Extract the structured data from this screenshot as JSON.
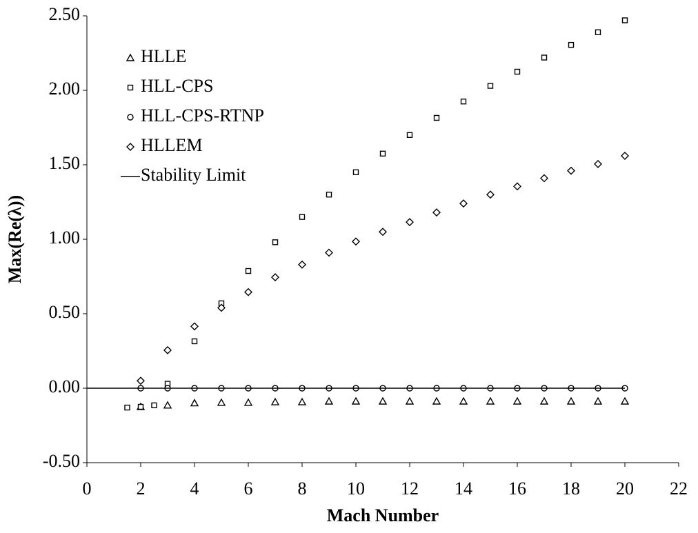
{
  "chart_data": {
    "type": "scatter",
    "x_label": "Mach Number",
    "y_label": "Max(Re(λ))",
    "xlim": [
      0,
      22
    ],
    "xticks": [
      0,
      2,
      4,
      6,
      8,
      10,
      12,
      14,
      16,
      18,
      20,
      22
    ],
    "ylim": [
      -0.5,
      2.5
    ],
    "yticks": [
      {
        "value": -0.5,
        "label": "-0.50"
      },
      {
        "value": 0,
        "label": "0.00"
      },
      {
        "value": 0.5,
        "label": "0.50"
      },
      {
        "value": 1,
        "label": "1.00"
      },
      {
        "value": 1.5,
        "label": "1.50"
      },
      {
        "value": 2,
        "label": "2.00"
      },
      {
        "value": 2.5,
        "label": "2.50"
      }
    ],
    "grid": false,
    "legend": "upper left",
    "series": [
      {
        "name": "HLLE",
        "marker": "triangle",
        "color": "#000000",
        "x": [
          2,
          3,
          4,
          5,
          6,
          7,
          8,
          9,
          10,
          11,
          12,
          13,
          14,
          15,
          16,
          17,
          18,
          19,
          20
        ],
        "values": [
          -0.125,
          -0.115,
          -0.1,
          -0.097,
          -0.097,
          -0.093,
          -0.093,
          -0.088,
          -0.088,
          -0.088,
          -0.088,
          -0.088,
          -0.088,
          -0.088,
          -0.088,
          -0.088,
          -0.088,
          -0.088,
          -0.088
        ]
      },
      {
        "name": "HLL-CPS",
        "marker": "square",
        "color": "#000000",
        "x": [
          1.5,
          2,
          2.5,
          3,
          4,
          5,
          6,
          7,
          8,
          9,
          10,
          11,
          12,
          13,
          14,
          15,
          16,
          17,
          18,
          19,
          20
        ],
        "values": [
          -0.13,
          -0.125,
          -0.115,
          0.03,
          0.315,
          0.57,
          0.787,
          0.98,
          1.15,
          1.3,
          1.45,
          1.575,
          1.7,
          1.815,
          1.925,
          2.03,
          2.125,
          2.22,
          2.305,
          2.39,
          2.47
        ]
      },
      {
        "name": "HLL-CPS-RTNP",
        "marker": "circle",
        "color": "#000000",
        "x": [
          2,
          3,
          4,
          5,
          6,
          7,
          8,
          9,
          10,
          11,
          12,
          13,
          14,
          15,
          16,
          17,
          18,
          19,
          20
        ],
        "values": [
          0,
          0,
          0,
          0,
          0,
          0,
          0,
          0,
          0,
          0,
          0,
          0,
          0,
          0,
          0,
          0,
          0,
          0,
          0
        ]
      },
      {
        "name": "HLLEM",
        "marker": "diamond",
        "color": "#000000",
        "x": [
          2,
          3,
          4,
          5,
          6,
          7,
          8,
          9,
          10,
          11,
          12,
          13,
          14,
          15,
          16,
          17,
          18,
          19,
          20
        ],
        "values": [
          0.05,
          0.255,
          0.415,
          0.54,
          0.645,
          0.745,
          0.83,
          0.91,
          0.985,
          1.05,
          1.115,
          1.18,
          1.24,
          1.3,
          1.355,
          1.41,
          1.46,
          1.505,
          1.56
        ]
      },
      {
        "name": "Stability Limit",
        "marker": "line",
        "color": "#000000",
        "x": [
          0,
          20
        ],
        "values": [
          0,
          0
        ]
      }
    ]
  }
}
